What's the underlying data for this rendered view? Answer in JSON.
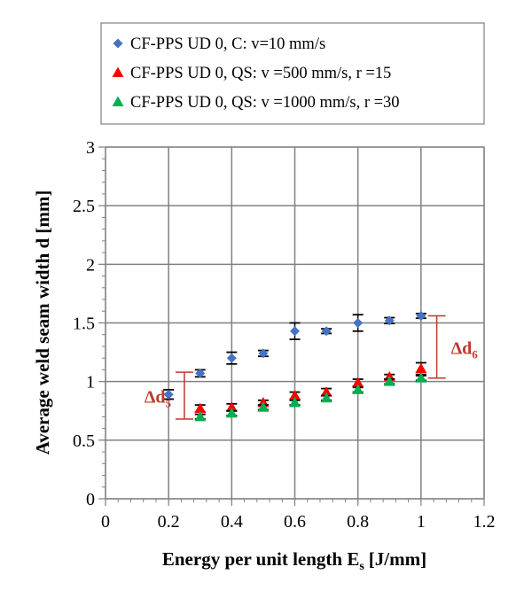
{
  "chart_data": {
    "type": "scatter",
    "title": "",
    "xlabel": "Energy per unit length E",
    "xlabel_sub": "s",
    "xlabel_unit": "[J/mm]",
    "ylabel": "Average weld seam width d [mm]",
    "xlim": [
      0,
      1.2
    ],
    "ylim": [
      0,
      3
    ],
    "xticks": [
      0,
      0.2,
      0.4,
      0.6,
      0.8,
      1,
      1.2
    ],
    "xtick_labels": [
      "0",
      "0.2",
      "0.4",
      "0.6",
      "0.8",
      "1",
      "1.2"
    ],
    "yticks": [
      0,
      0.5,
      1,
      1.5,
      2,
      2.5,
      3
    ],
    "ytick_labels": [
      "0",
      "0.5",
      "1",
      "1.5",
      "2",
      "2.5",
      "3"
    ],
    "grid": true,
    "legend_position": "top",
    "series": [
      {
        "name": "CF-PPS UD 0, C:  v=10 mm/s",
        "marker": "diamond",
        "color": "#4472C4",
        "x": [
          0.2,
          0.3,
          0.4,
          0.5,
          0.6,
          0.7,
          0.8,
          0.9,
          1.0
        ],
        "y": [
          0.89,
          1.07,
          1.2,
          1.24,
          1.43,
          1.43,
          1.5,
          1.52,
          1.56
        ],
        "err": [
          0.04,
          0.03,
          0.05,
          0.025,
          0.07,
          0.02,
          0.07,
          0.025,
          0.02
        ]
      },
      {
        "name": "CF-PPS UD 0, QS: v =500 mm/s, r =15",
        "marker": "triangle",
        "color": "#FF0000",
        "x": [
          0.3,
          0.4,
          0.5,
          0.6,
          0.7,
          0.8,
          0.9,
          1.0
        ],
        "y": [
          0.77,
          0.78,
          0.82,
          0.88,
          0.91,
          0.99,
          1.04,
          1.11
        ],
        "err": [
          0.03,
          0.03,
          0.02,
          0.03,
          0.03,
          0.03,
          0.02,
          0.05
        ]
      },
      {
        "name": "CF-PPS UD 0, QS: v =1000 mm/s, r =30",
        "marker": "triangle",
        "color": "#00B050",
        "x": [
          0.3,
          0.4,
          0.5,
          0.6,
          0.7,
          0.8,
          0.9,
          1.0
        ],
        "y": [
          0.7,
          0.73,
          0.78,
          0.82,
          0.86,
          0.93,
          1.0,
          1.03
        ],
        "err": [
          0.02,
          0.02,
          0.02,
          0.02,
          0.02,
          0.02,
          0.02,
          0.02
        ]
      }
    ],
    "annotations": [
      {
        "label": "Δd",
        "sub": "5",
        "x": 0.25,
        "y_low": 0.68,
        "y_high": 1.08,
        "color": "#C0392B"
      },
      {
        "label": "Δd",
        "sub": "6",
        "x": 1.05,
        "y_low": 1.03,
        "y_high": 1.56,
        "color": "#C0392B"
      }
    ]
  }
}
